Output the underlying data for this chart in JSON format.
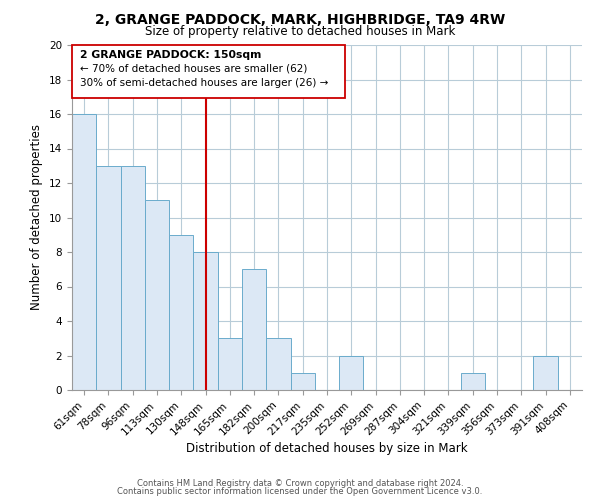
{
  "title": "2, GRANGE PADDOCK, MARK, HIGHBRIDGE, TA9 4RW",
  "subtitle": "Size of property relative to detached houses in Mark",
  "xlabel": "Distribution of detached houses by size in Mark",
  "ylabel": "Number of detached properties",
  "bar_fill_color": "#dce8f5",
  "bar_edge_color": "#6aabcc",
  "categories": [
    "61sqm",
    "78sqm",
    "96sqm",
    "113sqm",
    "130sqm",
    "148sqm",
    "165sqm",
    "182sqm",
    "200sqm",
    "217sqm",
    "235sqm",
    "252sqm",
    "269sqm",
    "287sqm",
    "304sqm",
    "321sqm",
    "339sqm",
    "356sqm",
    "373sqm",
    "391sqm",
    "408sqm"
  ],
  "values": [
    16,
    13,
    13,
    11,
    9,
    8,
    3,
    7,
    3,
    1,
    0,
    2,
    0,
    0,
    0,
    0,
    1,
    0,
    0,
    2,
    0
  ],
  "ylim": [
    0,
    20
  ],
  "yticks": [
    0,
    2,
    4,
    6,
    8,
    10,
    12,
    14,
    16,
    18,
    20
  ],
  "ref_line_index": 5,
  "annotation_title": "2 GRANGE PADDOCK: 150sqm",
  "annotation_line1": "← 70% of detached houses are smaller (62)",
  "annotation_line2": "30% of semi-detached houses are larger (26) →",
  "footer_line1": "Contains HM Land Registry data © Crown copyright and database right 2024.",
  "footer_line2": "Contains public sector information licensed under the Open Government Licence v3.0.",
  "background_color": "#ffffff",
  "grid_color": "#b8ccd8"
}
